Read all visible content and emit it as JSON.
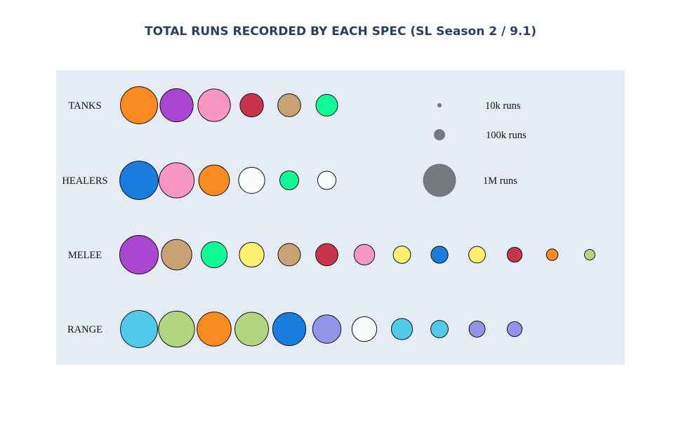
{
  "chart_data": {
    "type": "scatter",
    "title": "TOTAL RUNS RECORDED BY EACH SPEC (SL Season 2 / 9.1)",
    "size_legend": [
      {
        "label": "10k runs",
        "runs": 10000
      },
      {
        "label": "100k runs",
        "runs": 100000
      },
      {
        "label": "1M runs",
        "runs": 1000000
      }
    ],
    "legend_color": "#75787c",
    "plot_background": "#e5ecf6",
    "rows": [
      {
        "label": "TANKS",
        "bubbles": [
          {
            "runs": 1230000,
            "color": "#fa8a22"
          },
          {
            "runs": 980000,
            "color": "#a945d1"
          },
          {
            "runs": 940000,
            "color": "#f597c2"
          },
          {
            "runs": 490000,
            "color": "#c8344c"
          },
          {
            "runs": 470000,
            "color": "#c8a174"
          },
          {
            "runs": 420000,
            "color": "#10fa98"
          }
        ]
      },
      {
        "label": "HEALERS",
        "bubbles": [
          {
            "runs": 1320000,
            "color": "#197dde"
          },
          {
            "runs": 1110000,
            "color": "#f597c2"
          },
          {
            "runs": 840000,
            "color": "#fa8a22"
          },
          {
            "runs": 610000,
            "color": "#f9fbfd"
          },
          {
            "runs": 320000,
            "color": "#10fa98"
          },
          {
            "runs": 300000,
            "color": "#f9fbfd"
          }
        ]
      },
      {
        "label": "MELEE",
        "bubbles": [
          {
            "runs": 1330000,
            "color": "#a945d1"
          },
          {
            "runs": 830000,
            "color": "#c8a174"
          },
          {
            "runs": 610000,
            "color": "#10fa98"
          },
          {
            "runs": 550000,
            "color": "#fdf070"
          },
          {
            "runs": 450000,
            "color": "#c8a174"
          },
          {
            "runs": 440000,
            "color": "#c8344c"
          },
          {
            "runs": 380000,
            "color": "#f597c2"
          },
          {
            "runs": 270000,
            "color": "#fdf070"
          },
          {
            "runs": 260000,
            "color": "#197dde"
          },
          {
            "runs": 250000,
            "color": "#fdf070"
          },
          {
            "runs": 200000,
            "color": "#c8344c"
          },
          {
            "runs": 120000,
            "color": "#fa8a22"
          },
          {
            "runs": 100000,
            "color": "#b2d67f"
          }
        ]
      },
      {
        "label": "RANGE",
        "bubbles": [
          {
            "runs": 1230000,
            "color": "#4fcaeb"
          },
          {
            "runs": 1160000,
            "color": "#b2d67f"
          },
          {
            "runs": 1040000,
            "color": "#fa8a22"
          },
          {
            "runs": 1010000,
            "color": "#b2d67f"
          },
          {
            "runs": 980000,
            "color": "#197dde"
          },
          {
            "runs": 720000,
            "color": "#9194e8"
          },
          {
            "runs": 550000,
            "color": "#f9fbfd"
          },
          {
            "runs": 400000,
            "color": "#4fcaeb"
          },
          {
            "runs": 270000,
            "color": "#4fcaeb"
          },
          {
            "runs": 230000,
            "color": "#9194e8"
          },
          {
            "runs": 200000,
            "color": "#9194e8"
          }
        ]
      }
    ]
  }
}
